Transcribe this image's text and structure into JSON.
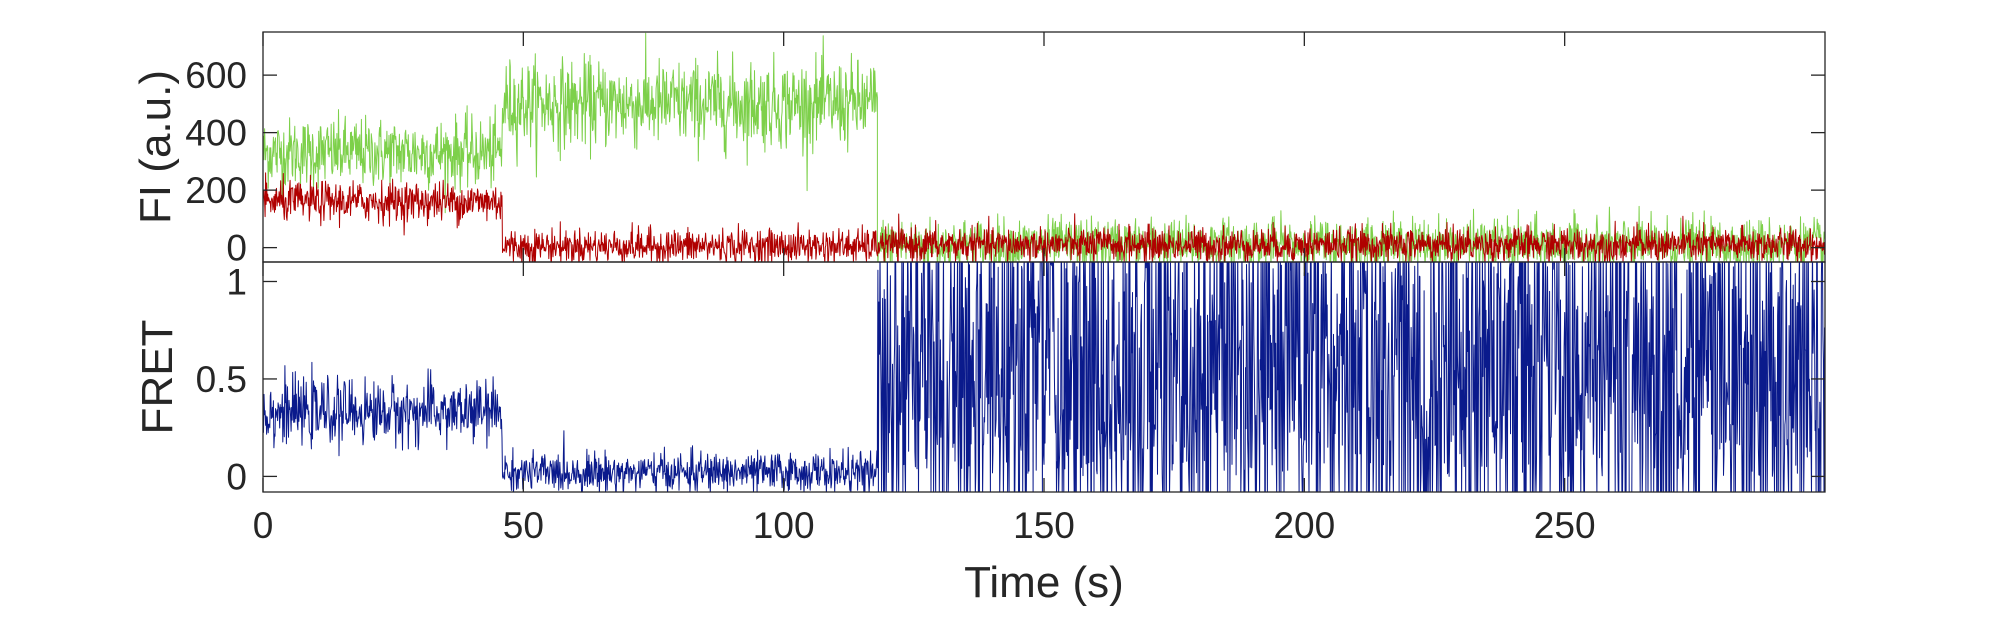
{
  "chart_data": [
    {
      "type": "line",
      "panel": "top",
      "ylabel": "FI (a.u.)",
      "xlabel": "",
      "xlim": [
        0,
        300
      ],
      "ylim": [
        -50,
        750
      ],
      "yticks": [
        0,
        200,
        400,
        600
      ],
      "ytick_labels": [
        "0",
        "200",
        "400",
        "600"
      ],
      "grid": false,
      "colors": {
        "donor": "#7dd04a",
        "acceptor": "#b00000"
      },
      "series": [
        {
          "color_key": "donor",
          "segments": [
            {
              "x_start": 0,
              "x_end": 46,
              "mean": 330,
              "noise": 60
            },
            {
              "x_start": 46,
              "x_end": 118,
              "mean": 500,
              "noise": 75
            },
            {
              "x_start": 118,
              "x_end": 300,
              "mean": 10,
              "noise": 45
            }
          ]
        },
        {
          "color_key": "acceptor",
          "segments": [
            {
              "x_start": 0,
              "x_end": 46,
              "mean": 160,
              "noise": 35
            },
            {
              "x_start": 46,
              "x_end": 118,
              "mean": 5,
              "noise": 30
            },
            {
              "x_start": 118,
              "x_end": 300,
              "mean": 10,
              "noise": 30
            }
          ]
        }
      ]
    },
    {
      "type": "line",
      "panel": "bottom",
      "ylabel": "FRET",
      "xlabel": "Time (s)",
      "xlim": [
        0,
        300
      ],
      "ylim": [
        -0.08,
        1.1
      ],
      "yticks": [
        0,
        0.5,
        1
      ],
      "ytick_labels": [
        "0",
        "0.5",
        "1"
      ],
      "xticks": [
        0,
        50,
        100,
        150,
        200,
        250
      ],
      "xtick_labels": [
        "0",
        "50",
        "100",
        "150",
        "200",
        "250"
      ],
      "grid": false,
      "colors": {
        "fret": "#0a1a8c"
      },
      "series": [
        {
          "color_key": "fret",
          "segments": [
            {
              "x_start": 0,
              "x_end": 46,
              "mean": 0.33,
              "noise": 0.08
            },
            {
              "x_start": 46,
              "x_end": 118,
              "mean": 0.02,
              "noise": 0.05
            },
            {
              "x_start": 118,
              "x_end": 300,
              "mean": 0.5,
              "noise": 0.6
            }
          ]
        }
      ]
    }
  ]
}
